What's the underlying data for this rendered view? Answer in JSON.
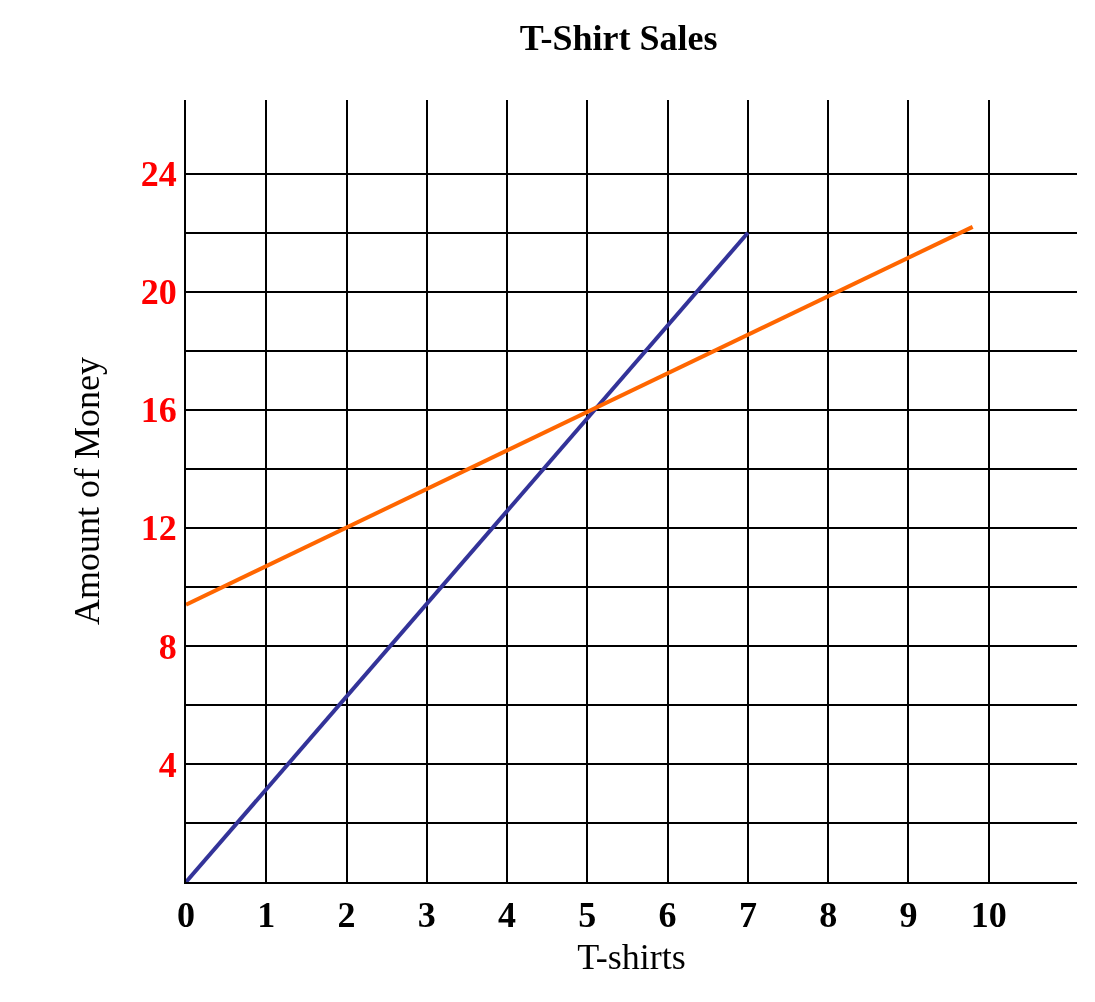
{
  "chart_data": {
    "type": "line",
    "title": "T-Shirt Sales",
    "xlabel": "T-shirts",
    "ylabel": "Amount of Money",
    "series": [
      {
        "color": "#333399",
        "x": [
          0,
          7
        ],
        "values": [
          0,
          22
        ]
      },
      {
        "color": "#ff6600",
        "x": [
          0,
          9.8
        ],
        "values": [
          9.4,
          22.2
        ]
      }
    ],
    "xlim": [
      0,
      11.1
    ],
    "ylim": [
      0,
      26.5
    ],
    "xticks": [
      0,
      1,
      2,
      3,
      4,
      5,
      6,
      7,
      8,
      9,
      10
    ],
    "yticks": [
      {
        "value": 0,
        "label": null
      },
      {
        "value": 2,
        "label": null
      },
      4,
      {
        "value": 6,
        "label": null
      },
      8,
      {
        "value": 10,
        "label": null
      },
      12,
      {
        "value": 14,
        "label": null
      },
      16,
      {
        "value": 18,
        "label": null
      },
      20,
      {
        "value": 22,
        "label": null
      },
      24
    ],
    "grid": true,
    "marker": "none",
    "line_style": "solid"
  }
}
